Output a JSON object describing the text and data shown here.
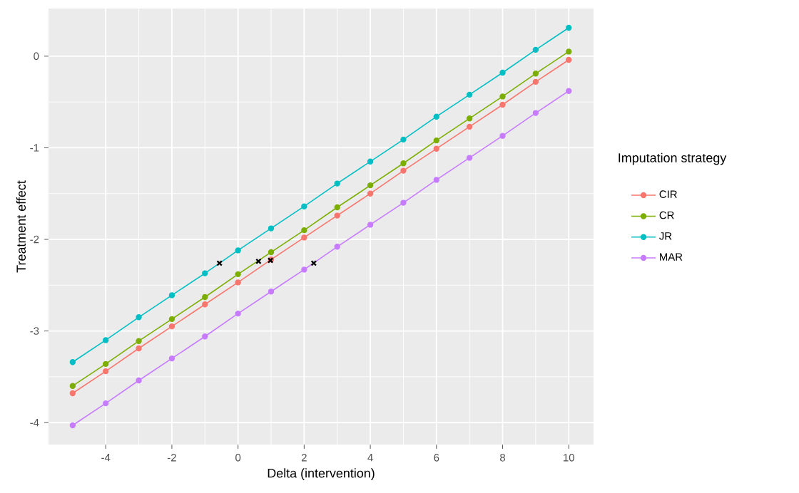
{
  "chart_data": {
    "type": "line",
    "xlabel": "Delta (intervention)",
    "ylabel": "Treatment effect",
    "legend_title": "Imputation strategy",
    "x": [
      -5,
      -4,
      -3,
      -2,
      -1,
      0,
      1,
      2,
      3,
      4,
      5,
      6,
      7,
      8,
      9,
      10
    ],
    "series": [
      {
        "name": "CIR",
        "color": "#f8766d",
        "values": [
          -3.68,
          -3.44,
          -3.19,
          -2.95,
          -2.71,
          -2.47,
          -2.22,
          -1.98,
          -1.74,
          -1.5,
          -1.25,
          -1.01,
          -0.77,
          -0.53,
          -0.28,
          -0.04
        ]
      },
      {
        "name": "CR",
        "color": "#7cae00",
        "values": [
          -3.6,
          -3.36,
          -3.11,
          -2.87,
          -2.63,
          -2.38,
          -2.14,
          -1.9,
          -1.65,
          -1.41,
          -1.17,
          -0.92,
          -0.68,
          -0.44,
          -0.19,
          0.05
        ]
      },
      {
        "name": "JR",
        "color": "#00bfc4",
        "values": [
          -3.34,
          -3.1,
          -2.85,
          -2.61,
          -2.37,
          -2.12,
          -1.88,
          -1.64,
          -1.39,
          -1.15,
          -0.91,
          -0.66,
          -0.42,
          -0.18,
          0.07,
          0.31
        ]
      },
      {
        "name": "MAR",
        "color": "#c77cff",
        "values": [
          -4.03,
          -3.79,
          -3.54,
          -3.3,
          -3.06,
          -2.81,
          -2.57,
          -2.33,
          -2.08,
          -1.84,
          -1.6,
          -1.35,
          -1.11,
          -0.87,
          -0.62,
          -0.38
        ]
      },
      {
        "type": "scatter",
        "marker": "cross",
        "color": "#000000",
        "x": [
          -0.56,
          0.62,
          0.98,
          2.29
        ],
        "values": [
          -2.26,
          -2.24,
          -2.23,
          -2.26
        ]
      }
    ],
    "marker": "circle",
    "line_style": "solid",
    "grid": true,
    "legend": "right",
    "xlim": [
      -5.73,
      10.75
    ],
    "ylim": [
      -4.24,
      0.52
    ],
    "xticks": [
      -4,
      -2,
      0,
      2,
      4,
      6,
      8,
      10
    ],
    "yticks": [
      -4,
      -3,
      -2,
      -1,
      0
    ]
  }
}
